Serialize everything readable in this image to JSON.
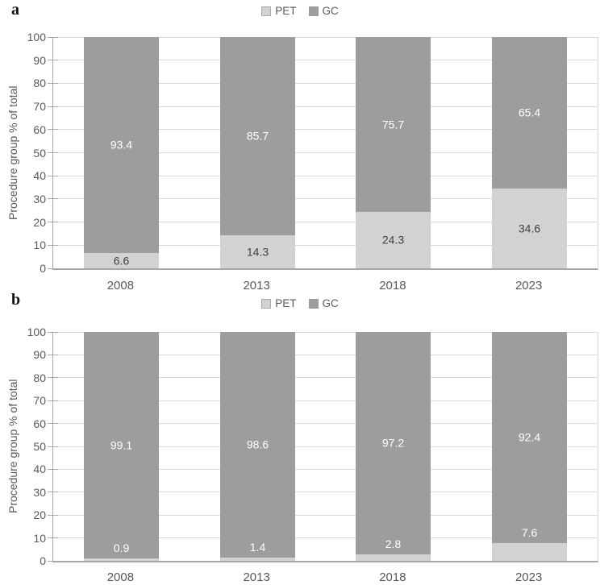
{
  "figure": {
    "panels": [
      {
        "letter": "a"
      },
      {
        "letter": "b"
      }
    ]
  },
  "colors": {
    "pet_fill": "#d2d2d2",
    "gc_fill": "#9d9d9d",
    "gridline": "#dadada",
    "axis_line": "#a6a6a6",
    "axis_text": "#595959",
    "label_on_dark": "#ffffff",
    "label_on_light": "#404040"
  },
  "chart_data": [
    {
      "type": "bar",
      "stacked": true,
      "panel": "a",
      "categories": [
        "2008",
        "2013",
        "2018",
        "2023"
      ],
      "series": [
        {
          "name": "PET",
          "color": "#d2d2d2",
          "values": [
            6.6,
            14.3,
            24.3,
            34.6
          ],
          "label_style": "inside-dark"
        },
        {
          "name": "GC",
          "color": "#9d9d9d",
          "values": [
            93.4,
            85.7,
            75.7,
            65.4
          ],
          "label_style": "inside-white"
        }
      ],
      "xlabel": "",
      "ylabel": "Procedure group % of total",
      "ylim": [
        0,
        100
      ],
      "yticks": [
        0,
        10,
        20,
        30,
        40,
        50,
        60,
        70,
        80,
        90,
        100
      ],
      "grid": true,
      "legend_position": "top"
    },
    {
      "type": "bar",
      "stacked": true,
      "panel": "b",
      "categories": [
        "2008",
        "2013",
        "2018",
        "2023"
      ],
      "series": [
        {
          "name": "PET",
          "color": "#d2d2d2",
          "values": [
            0.9,
            1.4,
            2.8,
            7.6
          ],
          "label_style": "above-white"
        },
        {
          "name": "GC",
          "color": "#9d9d9d",
          "values": [
            99.1,
            98.6,
            97.2,
            92.4
          ],
          "label_style": "inside-white"
        }
      ],
      "xlabel": "",
      "ylabel": "Procedure group % of total",
      "ylim": [
        0,
        100
      ],
      "yticks": [
        0,
        10,
        20,
        30,
        40,
        50,
        60,
        70,
        80,
        90,
        100
      ],
      "grid": true,
      "legend_position": "top"
    }
  ]
}
